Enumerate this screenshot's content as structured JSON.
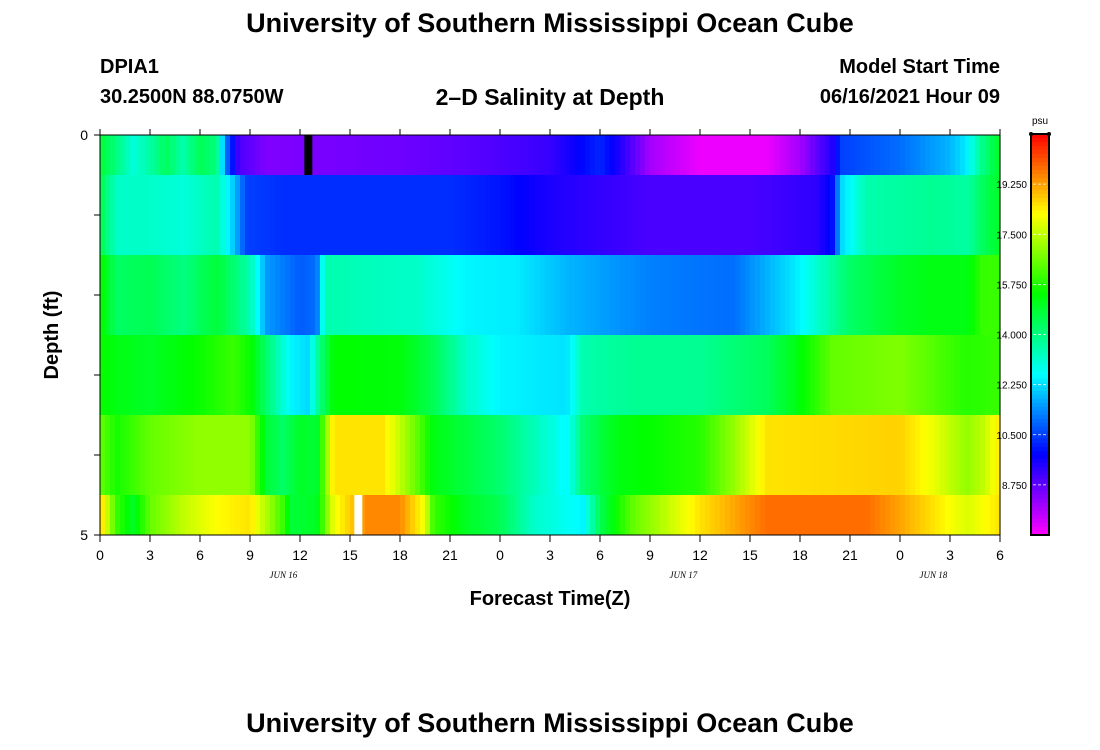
{
  "header": {
    "title": "University of Southern Mississippi Ocean Cube",
    "station": "DPIA1",
    "coords": "30.2500N  88.0750W",
    "subtitle": "2–D Salinity at Depth",
    "model_label": "Model Start Time",
    "model_date": "06/16/2021 Hour 09"
  },
  "footer": {
    "title": "University of Southern Mississippi Ocean Cube"
  },
  "chart_data": {
    "type": "heatmap",
    "xlabel": "Forecast Time(Z)",
    "ylabel": "Depth (ft)",
    "x_tick_labels": [
      "0",
      "3",
      "6",
      "9",
      "12",
      "15",
      "18",
      "21",
      "0",
      "3",
      "6",
      "9",
      "12",
      "15",
      "18",
      "21",
      "0",
      "3",
      "6"
    ],
    "x_date_labels": [
      {
        "hour_index": 11,
        "label": "JUN 16"
      },
      {
        "hour_index": 35,
        "label": "JUN 17"
      },
      {
        "hour_index": 50,
        "label": "JUN 18"
      }
    ],
    "y_tick_labels": [
      "0",
      "5"
    ],
    "ylim": [
      0,
      5
    ],
    "xlim_hours": [
      0,
      54
    ],
    "colorbar": {
      "unit": "psu",
      "tick_labels": [
        "19.250",
        "17.500",
        "15.750",
        "14.000",
        "12.250",
        "10.500",
        "8.750"
      ],
      "range": [
        7.0,
        21.0
      ]
    },
    "markers": [
      {
        "depth_layer": 0,
        "hour": 12.5,
        "color": "#000000"
      },
      {
        "depth_layer": 5,
        "hour": 15.5,
        "color": "#ffffff"
      }
    ],
    "layers": [
      {
        "depth_range": [
          0,
          0.5
        ],
        "keyframes": [
          [
            0,
            14.8
          ],
          [
            1,
            14.0
          ],
          [
            2,
            13.0
          ],
          [
            3,
            13.6
          ],
          [
            4,
            14.4
          ],
          [
            5,
            13.5
          ],
          [
            6,
            14.5
          ],
          [
            7,
            14.0
          ],
          [
            7.6,
            11.0
          ],
          [
            8.3,
            9.0
          ],
          [
            10,
            8.4
          ],
          [
            14,
            8.5
          ],
          [
            18,
            8.6
          ],
          [
            22,
            8.8
          ],
          [
            27,
            9.2
          ],
          [
            30,
            10.2
          ],
          [
            31,
            9.6
          ],
          [
            33,
            8.0
          ],
          [
            36,
            7.2
          ],
          [
            40,
            7.2
          ],
          [
            42,
            8.0
          ],
          [
            44,
            9.5
          ],
          [
            44.5,
            10.5
          ],
          [
            48,
            11.0
          ],
          [
            51,
            11.8
          ],
          [
            52,
            12.4
          ],
          [
            53,
            14.0
          ],
          [
            54,
            15.0
          ]
        ]
      },
      {
        "depth_range": [
          0.5,
          1.5
        ],
        "keyframes": [
          [
            0,
            14.6
          ],
          [
            1,
            13.2
          ],
          [
            3,
            13.2
          ],
          [
            5,
            13.0
          ],
          [
            7,
            13.5
          ],
          [
            8,
            12.0
          ],
          [
            8.8,
            10.5
          ],
          [
            11,
            10.3
          ],
          [
            15,
            10.3
          ],
          [
            21,
            10.3
          ],
          [
            24,
            10.0
          ],
          [
            27,
            9.5
          ],
          [
            33,
            9.0
          ],
          [
            39,
            9.0
          ],
          [
            43,
            9.3
          ],
          [
            44,
            10.0
          ],
          [
            44.5,
            12.2
          ],
          [
            46,
            13.5
          ],
          [
            50,
            13.8
          ],
          [
            52,
            13.6
          ],
          [
            53,
            14.4
          ],
          [
            54,
            15.0
          ]
        ]
      },
      {
        "depth_range": [
          1.5,
          2.5
        ],
        "keyframes": [
          [
            0,
            15.5
          ],
          [
            1,
            14.3
          ],
          [
            3,
            14.5
          ],
          [
            5,
            14.0
          ],
          [
            7,
            14.8
          ],
          [
            9,
            13.5
          ],
          [
            10,
            11.5
          ],
          [
            12,
            10.8
          ],
          [
            13,
            11.0
          ],
          [
            13.5,
            13.5
          ],
          [
            15,
            13.4
          ],
          [
            19,
            13.2
          ],
          [
            22,
            12.5
          ],
          [
            25,
            12.4
          ],
          [
            28,
            11.8
          ],
          [
            33,
            11.2
          ],
          [
            38,
            11.0
          ],
          [
            42,
            12.5
          ],
          [
            45,
            14.3
          ],
          [
            48,
            15.0
          ],
          [
            50,
            15.2
          ],
          [
            52,
            15.2
          ],
          [
            53,
            16.0
          ],
          [
            54,
            16.0
          ]
        ]
      },
      {
        "depth_range": [
          2.5,
          3.5
        ],
        "keyframes": [
          [
            0,
            15.5
          ],
          [
            1,
            15.2
          ],
          [
            3,
            15.0
          ],
          [
            6,
            15.5
          ],
          [
            8,
            16.0
          ],
          [
            9,
            15.5
          ],
          [
            10,
            14.2
          ],
          [
            11,
            13.0
          ],
          [
            11.5,
            12.5
          ],
          [
            12.5,
            12.2
          ],
          [
            13,
            13.6
          ],
          [
            14,
            15.4
          ],
          [
            18,
            15.3
          ],
          [
            20,
            14.5
          ],
          [
            22,
            13.2
          ],
          [
            24,
            12.5
          ],
          [
            28,
            12.3
          ],
          [
            29,
            13.5
          ],
          [
            32,
            13.8
          ],
          [
            36,
            13.8
          ],
          [
            40,
            14.4
          ],
          [
            42,
            15.3
          ],
          [
            44,
            16.5
          ],
          [
            48,
            16.8
          ],
          [
            50,
            16.3
          ],
          [
            52,
            15.8
          ],
          [
            54,
            16.0
          ]
        ]
      },
      {
        "depth_range": [
          3.5,
          4.5
        ],
        "keyframes": [
          [
            0,
            16.5
          ],
          [
            1,
            15.6
          ],
          [
            3,
            16.5
          ],
          [
            6,
            17.0
          ],
          [
            9,
            17.0
          ],
          [
            10,
            14.8
          ],
          [
            11,
            14.3
          ],
          [
            12,
            15.0
          ],
          [
            13,
            14.8
          ],
          [
            14,
            18.5
          ],
          [
            17,
            18.5
          ],
          [
            18.5,
            17.0
          ],
          [
            19,
            16.5
          ],
          [
            20,
            15.2
          ],
          [
            24,
            14.2
          ],
          [
            27,
            13.0
          ],
          [
            28,
            12.5
          ],
          [
            29,
            14.2
          ],
          [
            31,
            15.2
          ],
          [
            36,
            15.8
          ],
          [
            38,
            17.0
          ],
          [
            40,
            18.5
          ],
          [
            48,
            18.7
          ],
          [
            50,
            18.0
          ],
          [
            52,
            17.0
          ],
          [
            53,
            17.5
          ],
          [
            54,
            18.5
          ]
        ]
      },
      {
        "depth_range": [
          4.5,
          5
        ],
        "keyframes": [
          [
            0,
            18.8
          ],
          [
            1,
            16.0
          ],
          [
            2,
            15.0
          ],
          [
            3,
            16.5
          ],
          [
            5,
            17.5
          ],
          [
            7,
            18.2
          ],
          [
            9,
            18.5
          ],
          [
            10,
            17.3
          ],
          [
            11,
            16.0
          ],
          [
            11.5,
            14.8
          ],
          [
            13,
            15.0
          ],
          [
            14,
            18.0
          ],
          [
            16,
            19.5
          ],
          [
            18,
            19.5
          ],
          [
            19.5,
            18.0
          ],
          [
            20,
            16.0
          ],
          [
            22,
            15.0
          ],
          [
            24,
            14.5
          ],
          [
            26,
            13.2
          ],
          [
            29,
            12.5
          ],
          [
            30,
            14.5
          ],
          [
            32,
            16.5
          ],
          [
            34,
            17.5
          ],
          [
            36,
            18.5
          ],
          [
            40,
            19.8
          ],
          [
            46,
            19.8
          ],
          [
            48,
            19.2
          ],
          [
            50,
            18.5
          ],
          [
            52,
            17.8
          ],
          [
            54,
            18.5
          ]
        ]
      }
    ]
  }
}
